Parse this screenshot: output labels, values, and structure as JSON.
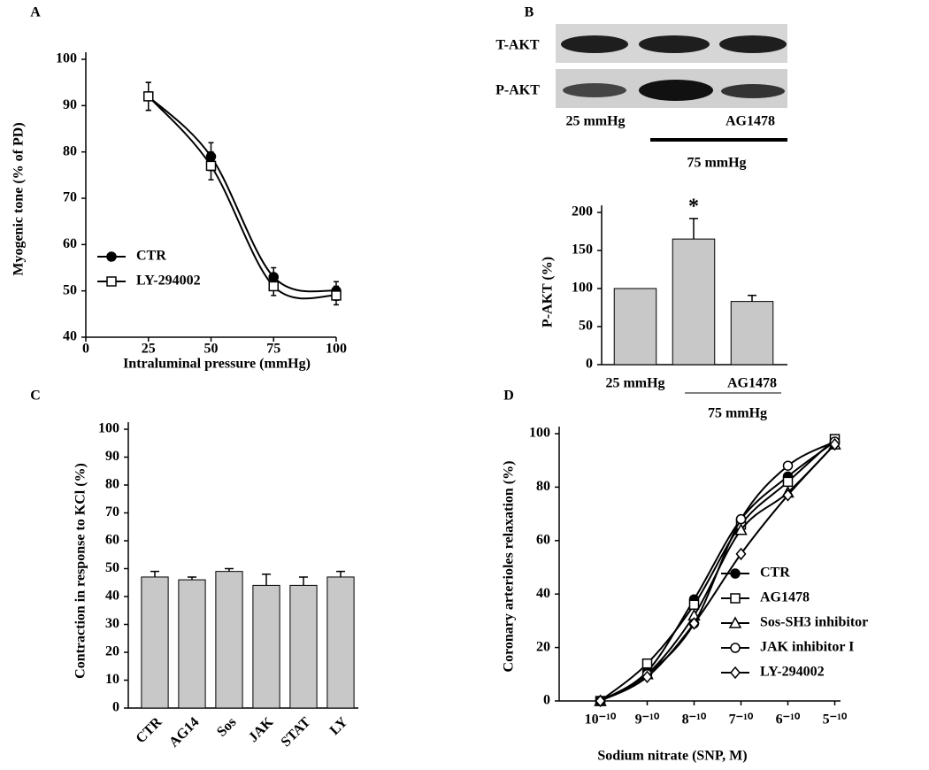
{
  "chart_data": [
    {
      "type": "line",
      "panel": "A",
      "x_label": "Intraluminal pressure (mmHg)",
      "y_label": "Myogenic tone (% of PD)",
      "x": [
        25,
        50,
        75,
        100
      ],
      "xlim": [
        0,
        100
      ],
      "xticks": [
        0,
        25,
        50,
        75,
        100
      ],
      "ylim": [
        40,
        100
      ],
      "yticks": [
        40,
        50,
        60,
        70,
        80,
        90,
        100
      ],
      "grid": false,
      "series": [
        {
          "name": "CTR",
          "color": "#000000",
          "marker": "circle-filled",
          "values": [
            92,
            79,
            53,
            50
          ],
          "errors": [
            3,
            3,
            2,
            2
          ]
        },
        {
          "name": "LY-294002",
          "color": "#000000",
          "marker": "square",
          "values": [
            92,
            77,
            51,
            49
          ],
          "errors": [
            3,
            3,
            2,
            2
          ]
        }
      ]
    },
    {
      "type": "bar",
      "panel": "B",
      "y_label": "P-AKT (%)",
      "annotation": "*",
      "group_label": "75 mmHg",
      "categories": [
        "25 mmHg",
        null,
        "AG1478"
      ],
      "values": [
        100,
        165,
        83
      ],
      "errors": [
        null,
        27,
        8
      ],
      "color": "#c8c8c8",
      "ylim": [
        0,
        200
      ],
      "yticks": [
        0,
        50,
        100,
        150,
        200
      ],
      "grid": false
    },
    {
      "type": "bar",
      "panel": "C",
      "y_label": "Contraction in response to KCl (%)",
      "categories": [
        "CTR",
        "AG14",
        "Sos",
        "JAK",
        "STAT",
        "LY"
      ],
      "values": [
        47,
        46,
        49,
        44,
        44,
        47
      ],
      "errors": [
        2,
        1,
        1,
        4,
        3,
        2
      ],
      "color": "#c8c8c8",
      "ylim": [
        0,
        100
      ],
      "yticks": [
        0,
        10,
        20,
        30,
        40,
        50,
        60,
        70,
        80,
        90,
        100
      ],
      "grid": false
    },
    {
      "type": "line",
      "panel": "D",
      "x_label": "Sodium nitrate (SNP, M)",
      "y_label": "Coronary arterioles relaxation (%)",
      "categories": [
        "10⁻¹⁰",
        "9⁻¹⁰",
        "8⁻¹⁰",
        "7⁻¹⁰",
        "6⁻¹⁰",
        "5⁻¹⁰"
      ],
      "ylim": [
        0,
        100
      ],
      "yticks": [
        0,
        20,
        40,
        60,
        80,
        100
      ],
      "grid": false,
      "series": [
        {
          "name": "CTR",
          "color": "#000000",
          "marker": "circle-filled",
          "values": [
            0,
            11,
            38,
            68,
            84,
            97
          ]
        },
        {
          "name": "AG1478",
          "color": "#000000",
          "marker": "square",
          "values": [
            0,
            14,
            36,
            66,
            82,
            98
          ]
        },
        {
          "name": "Sos-SH3 inhibitor",
          "color": "#000000",
          "marker": "triangle",
          "values": [
            0,
            10,
            32,
            64,
            78,
            96
          ]
        },
        {
          "name": "JAK inhibitor I",
          "color": "#000000",
          "marker": "circle-open",
          "values": [
            0,
            10,
            29,
            68,
            88,
            97
          ]
        },
        {
          "name": "LY-294002",
          "color": "#000000",
          "marker": "diamond",
          "values": [
            0,
            9,
            29,
            55,
            77,
            96
          ]
        }
      ]
    }
  ],
  "blot": {
    "rows": [
      "T-AKT",
      "P-AKT"
    ],
    "lanes": [
      "25 mmHg",
      "AG1478"
    ],
    "group": "75 mmHg"
  }
}
